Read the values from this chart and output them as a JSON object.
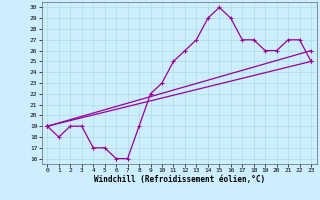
{
  "xlabel": "Windchill (Refroidissement éolien,°C)",
  "bg_color": "#cceeff",
  "line_color": "#990099",
  "grid_color": "#aadddd",
  "xlim": [
    -0.5,
    23.5
  ],
  "ylim": [
    15.5,
    30.5
  ],
  "xticks": [
    0,
    1,
    2,
    3,
    4,
    5,
    6,
    7,
    8,
    9,
    10,
    11,
    12,
    13,
    14,
    15,
    16,
    17,
    18,
    19,
    20,
    21,
    22,
    23
  ],
  "yticks": [
    16,
    17,
    18,
    19,
    20,
    21,
    22,
    23,
    24,
    25,
    26,
    27,
    28,
    29,
    30
  ],
  "line1_x": [
    0,
    1,
    2,
    3,
    4,
    5,
    6,
    7,
    8,
    9,
    10,
    11,
    12,
    13,
    14,
    15,
    16,
    17,
    18,
    19,
    20,
    21,
    22,
    23
  ],
  "line1_y": [
    19,
    18,
    19,
    19,
    17,
    17,
    16,
    16,
    19,
    22,
    23,
    25,
    26,
    27,
    29,
    30,
    29,
    27,
    27,
    26,
    26,
    27,
    27,
    25
  ],
  "line2_x": [
    0,
    23
  ],
  "line2_y": [
    19,
    25
  ],
  "line3_x": [
    0,
    23
  ],
  "line3_y": [
    19,
    26
  ],
  "marker": "+",
  "markersize": 3,
  "linewidth": 0.9,
  "axis_fontsize": 5.5,
  "tick_fontsize": 4.5
}
